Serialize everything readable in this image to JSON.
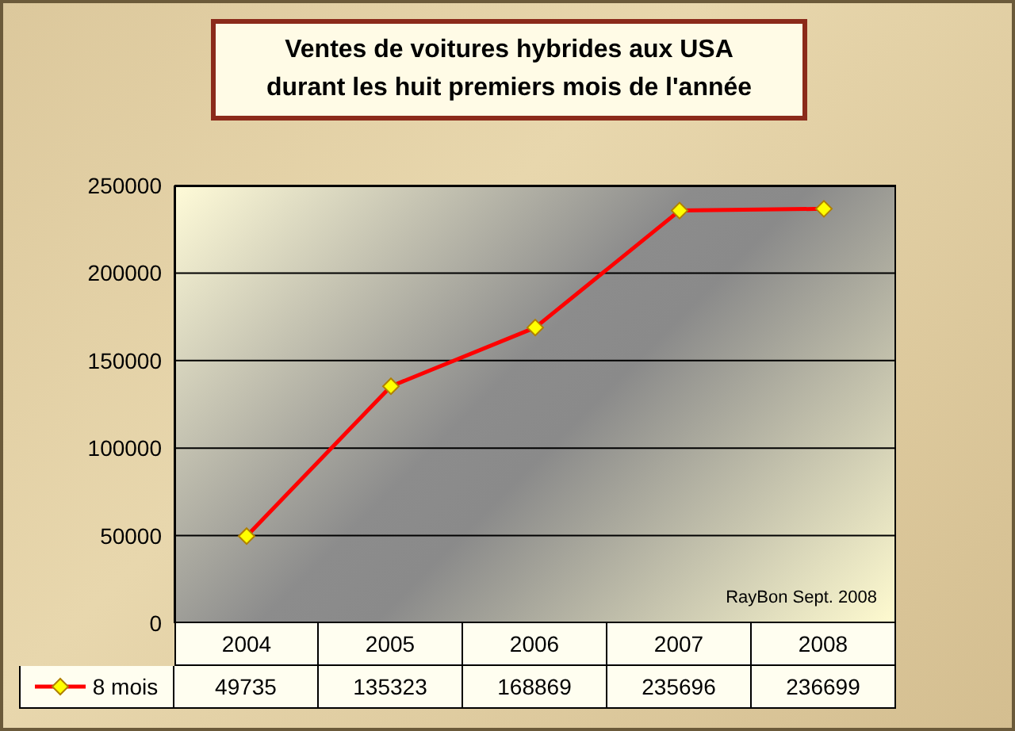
{
  "chart_data": {
    "type": "line",
    "title": "Ventes de voitures hybrides aux USA\ndurant les huit premiers mois de l'année",
    "categories": [
      "2004",
      "2005",
      "2006",
      "2007",
      "2008"
    ],
    "series": [
      {
        "name": "8 mois",
        "color": "#ff0000",
        "values": [
          49735,
          135323,
          168869,
          235696,
          236699
        ]
      }
    ],
    "ylim": [
      0,
      250000
    ],
    "yticks": [
      0,
      50000,
      100000,
      150000,
      200000,
      250000
    ],
    "grid": "y",
    "legend": "bottom",
    "marker": "diamond",
    "line_style": "solid",
    "data_labels": true,
    "annotations": [
      "RayBon Sept. 2008"
    ]
  }
}
